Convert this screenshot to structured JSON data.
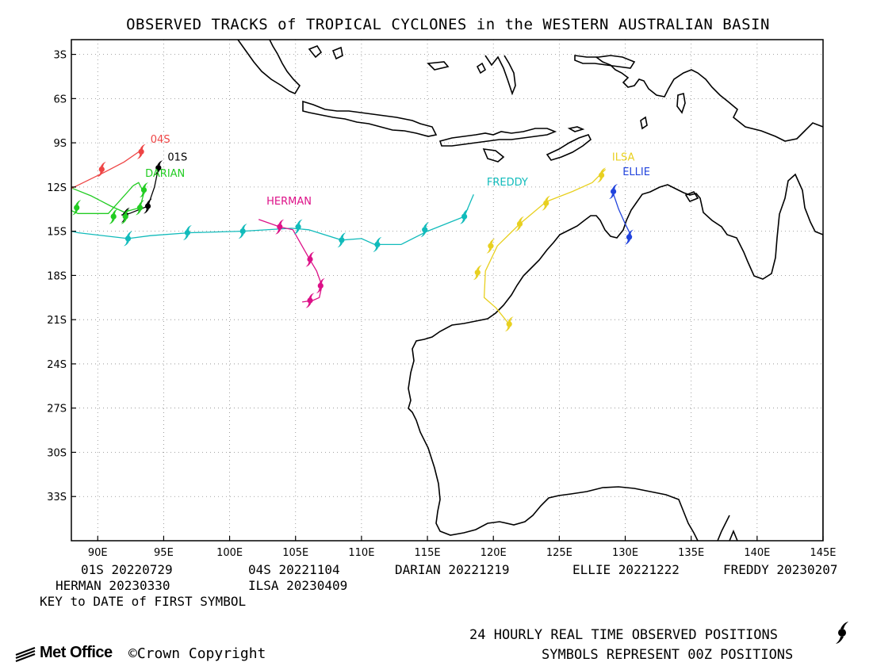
{
  "title": "OBSERVED TRACKS of TROPICAL CYCLONES in the WESTERN AUSTRALIAN BASIN",
  "map": {
    "lon_range": [
      88,
      145
    ],
    "lat_range": [
      -36,
      -2
    ],
    "lat_ticks": [
      {
        "v": -3,
        "label": "3S"
      },
      {
        "v": -6,
        "label": "6S"
      },
      {
        "v": -9,
        "label": "9S"
      },
      {
        "v": -12,
        "label": "12S"
      },
      {
        "v": -15,
        "label": "15S"
      },
      {
        "v": -18,
        "label": "18S"
      },
      {
        "v": -21,
        "label": "21S"
      },
      {
        "v": -24,
        "label": "24S"
      },
      {
        "v": -27,
        "label": "27S"
      },
      {
        "v": -30,
        "label": "30S"
      },
      {
        "v": -33,
        "label": "33S"
      }
    ],
    "lon_ticks": [
      {
        "v": 90,
        "label": "90E"
      },
      {
        "v": 95,
        "label": "95E"
      },
      {
        "v": 100,
        "label": "100E"
      },
      {
        "v": 105,
        "label": "105E"
      },
      {
        "v": 110,
        "label": "110E"
      },
      {
        "v": 115,
        "label": "115E"
      },
      {
        "v": 120,
        "label": "120E"
      },
      {
        "v": 125,
        "label": "125E"
      },
      {
        "v": 130,
        "label": "130E"
      },
      {
        "v": 135,
        "label": "135E"
      },
      {
        "v": 140,
        "label": "140E"
      },
      {
        "v": 145,
        "label": "145E"
      }
    ],
    "grid": "dotted"
  },
  "storms": [
    {
      "name": "04S",
      "color": "#ee4444",
      "track": [
        [
          88,
          -12.1
        ],
        [
          90.5,
          -11
        ],
        [
          92,
          -10.3
        ],
        [
          93.3,
          -9.5
        ]
      ],
      "symbols": [
        [
          90.3,
          -10.8
        ],
        [
          93.3,
          -9.6
        ]
      ]
    },
    {
      "name": "01S",
      "color": "#000000",
      "track": [
        [
          94.6,
          -10.7
        ],
        [
          94.3,
          -12
        ],
        [
          93.8,
          -13.3
        ],
        [
          92.4,
          -13.8
        ],
        [
          91.8,
          -13.9
        ]
      ],
      "symbols": [
        [
          94.6,
          -10.7
        ],
        [
          93.8,
          -13.3
        ],
        [
          92.1,
          -13.9
        ]
      ]
    },
    {
      "name": "DARIAN",
      "color": "#22cc22",
      "track": [
        [
          88.1,
          -12.1
        ],
        [
          89.5,
          -12.6
        ],
        [
          91,
          -13.3
        ],
        [
          92,
          -13.7
        ],
        [
          93.2,
          -13.4
        ],
        [
          93.5,
          -12.4
        ],
        [
          93.1,
          -11.7
        ],
        [
          92.7,
          -11.9
        ],
        [
          90.8,
          -13.8
        ],
        [
          88.5,
          -13.8
        ],
        [
          87.5,
          -13.4
        ]
      ],
      "symbols": [
        [
          88.4,
          -13.4
        ],
        [
          91.2,
          -14
        ],
        [
          93.2,
          -13.4
        ],
        [
          93.5,
          -12.2
        ],
        [
          92.1,
          -14
        ]
      ]
    },
    {
      "name": "FREDDY",
      "color": "#11bbbb",
      "track": [
        [
          118.5,
          -12.5
        ],
        [
          117.8,
          -14
        ],
        [
          115,
          -15
        ],
        [
          113,
          -15.9
        ],
        [
          111,
          -15.9
        ],
        [
          110,
          -15.5
        ],
        [
          108.5,
          -15.6
        ],
        [
          106,
          -14.9
        ],
        [
          104.7,
          -14.8
        ],
        [
          101,
          -15
        ],
        [
          97,
          -15.1
        ],
        [
          94,
          -15.3
        ],
        [
          92.3,
          -15.5
        ],
        [
          88.5,
          -15.1
        ],
        [
          88,
          -15
        ]
      ],
      "symbols": [
        [
          117.8,
          -14
        ],
        [
          114.8,
          -14.9
        ],
        [
          111.2,
          -15.9
        ],
        [
          108.5,
          -15.6
        ],
        [
          105.2,
          -14.7
        ],
        [
          101,
          -15
        ],
        [
          96.8,
          -15.1
        ],
        [
          92.3,
          -15.5
        ]
      ]
    },
    {
      "name": "HERMAN",
      "color": "#dd1188",
      "track": [
        [
          102.2,
          -14.2
        ],
        [
          103.8,
          -14.7
        ],
        [
          104.8,
          -14.9
        ],
        [
          106,
          -16.8
        ],
        [
          106.6,
          -17.7
        ],
        [
          107,
          -18.7
        ],
        [
          106.8,
          -19.5
        ],
        [
          106.3,
          -19.7
        ],
        [
          105.5,
          -19.8
        ]
      ],
      "symbols": [
        [
          103.8,
          -14.7
        ],
        [
          106.1,
          -16.9
        ],
        [
          106.9,
          -18.7
        ],
        [
          106.1,
          -19.7
        ]
      ]
    },
    {
      "name": "ILSA",
      "color": "#e8d020",
      "track": [
        [
          128.5,
          -10.8
        ],
        [
          127.5,
          -11.7
        ],
        [
          126,
          -12.3
        ],
        [
          124,
          -13
        ],
        [
          122,
          -14.5
        ],
        [
          120.3,
          -16
        ],
        [
          119.4,
          -17.7
        ],
        [
          119.3,
          -19.5
        ],
        [
          120.2,
          -20.2
        ],
        [
          121.1,
          -21.2
        ]
      ],
      "symbols": [
        [
          128.2,
          -11.2
        ],
        [
          124,
          -13.1
        ],
        [
          122,
          -14.5
        ],
        [
          119.8,
          -16
        ],
        [
          118.8,
          -17.8
        ],
        [
          121.2,
          -21.3
        ]
      ]
    },
    {
      "name": "ELLIE",
      "color": "#2244dd",
      "track": [
        [
          129,
          -12.2
        ],
        [
          129.5,
          -13.5
        ],
        [
          130,
          -14.5
        ],
        [
          130.5,
          -15.4
        ]
      ],
      "symbols": [
        [
          129.1,
          -12.3
        ],
        [
          130.3,
          -15.4
        ]
      ]
    }
  ],
  "labels": [
    {
      "text": "04S",
      "lon": 94,
      "lat": -9,
      "color": "#ee4444"
    },
    {
      "text": "01S",
      "lon": 95.3,
      "lat": -10.2,
      "color": "#000000"
    },
    {
      "text": "DARIAN",
      "lon": 93.6,
      "lat": -11.3,
      "color": "#22cc22"
    },
    {
      "text": "FREDDY",
      "lon": 119.5,
      "lat": -11.9,
      "color": "#11bbbb"
    },
    {
      "text": "HERMAN",
      "lon": 102.8,
      "lat": -13.2,
      "color": "#dd1188"
    },
    {
      "text": "ILSA",
      "lon": 129,
      "lat": -10.2,
      "color": "#e8d020"
    },
    {
      "text": "ELLIE",
      "lon": 129.8,
      "lat": -11.2,
      "color": "#2244dd"
    }
  ],
  "key": {
    "entries": [
      {
        "text": "01S 20220729"
      },
      {
        "text": "04S 20221104"
      },
      {
        "text": "DARIAN 20221219"
      },
      {
        "text": "ELLIE 20221222"
      },
      {
        "text": "FREDDY 20230207"
      },
      {
        "text": "HERMAN 20230330"
      },
      {
        "text": "ILSA 20230409"
      }
    ],
    "note": "KEY to DATE of FIRST SYMBOL"
  },
  "footer": {
    "line1": "24 HOURLY REAL TIME OBSERVED POSITIONS",
    "line2": "SYMBOLS REPRESENT 00Z POSITIONS",
    "logo": "Met Office",
    "copyright": "Crown Copyright"
  }
}
